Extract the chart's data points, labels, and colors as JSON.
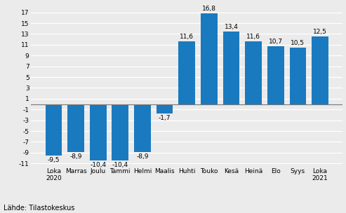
{
  "categories": [
    "Loka\n2020",
    "Marras",
    "Joulu",
    "Tammi",
    "Helmi",
    "Maalis",
    "Huhti",
    "Touko",
    "Kesä",
    "Heinä",
    "Elo",
    "Syys",
    "Loka\n2021"
  ],
  "values": [
    -9.5,
    -8.9,
    -10.4,
    -10.4,
    -8.9,
    -1.7,
    11.6,
    16.8,
    13.4,
    11.6,
    10.7,
    10.5,
    12.5
  ],
  "bar_color": "#1a7abf",
  "ylim": [
    -11.5,
    18.5
  ],
  "yticks": [
    -11,
    -9,
    -7,
    -5,
    -3,
    -1,
    1,
    3,
    5,
    7,
    9,
    11,
    13,
    15,
    17
  ],
  "source_text": "Lähde: Tilastokeskus",
  "background_color": "#ebebeb",
  "grid_color": "#ffffff",
  "label_fontsize": 6.5,
  "tick_fontsize": 6.5,
  "source_fontsize": 7.0
}
